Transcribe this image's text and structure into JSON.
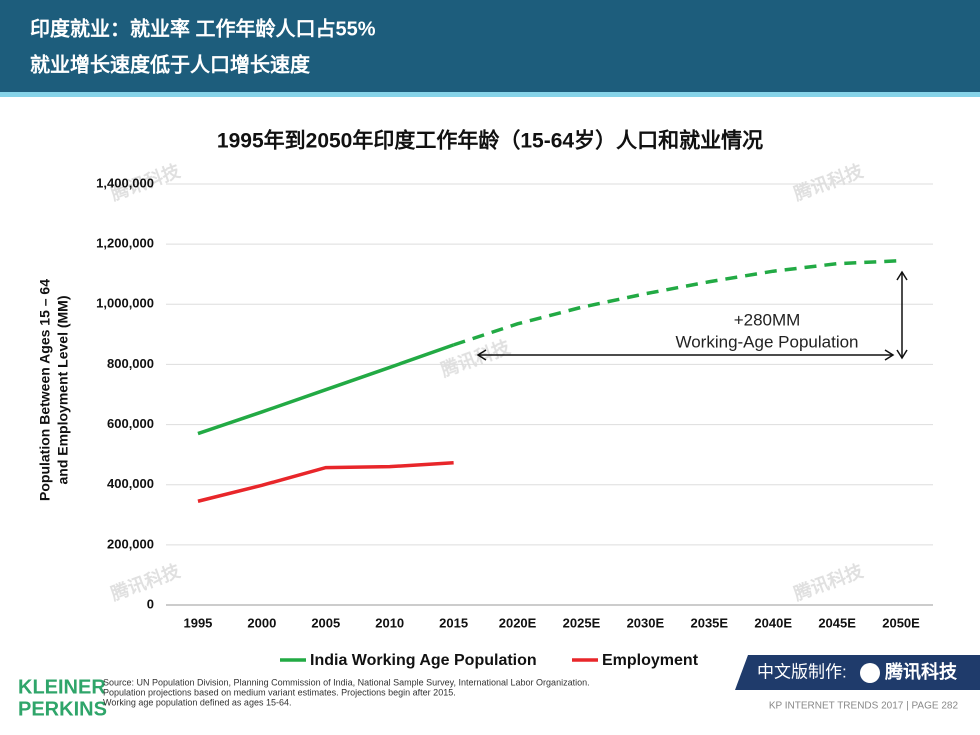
{
  "header": {
    "title_line1": "印度就业：就业率 工作年龄人口占55%",
    "title_line2": "就业增长速度低于人口增长速度"
  },
  "chart_data": {
    "type": "line",
    "title": "1995年到2050年印度工作年龄（15-64岁）人口和就业情况",
    "y_label": [
      "Population Between Ages 15 – 64",
      "and Employment Level (MM)"
    ],
    "categories": [
      "1995",
      "2000",
      "2005",
      "2010",
      "2015",
      "2020E",
      "2025E",
      "2030E",
      "2035E",
      "2040E",
      "2045E",
      "2050E"
    ],
    "series": [
      {
        "name": "India Working Age Population",
        "color": "#22aa44",
        "values": [
          570000,
          642000,
          716000,
          790000,
          865000,
          935000,
          990000,
          1035000,
          1075000,
          1110000,
          1135000,
          1145000
        ]
      },
      {
        "name": "Employment",
        "color": "#e8262a",
        "values": [
          345000,
          398000,
          457000,
          460000,
          473000,
          null,
          null,
          null,
          null,
          null,
          null,
          null
        ]
      }
    ],
    "ylim": [
      0,
      1400000
    ],
    "yticks": [
      0,
      {
        "value": 200000,
        "label": "200,000"
      },
      {
        "value": 400000,
        "label": "400,000"
      },
      {
        "value": 600000,
        "label": "600,000"
      },
      {
        "value": 800000,
        "label": "800,000"
      },
      {
        "value": 1000000,
        "label": "1,000,000"
      },
      {
        "value": 1200000,
        "label": "1,200,000"
      },
      {
        "value": 1400000,
        "label": "1,400,000"
      }
    ],
    "grid": true,
    "annotations": [
      "+280MM",
      "Working-Age Population"
    ]
  },
  "watermark": "腾讯科技",
  "footer": {
    "logo": [
      "KLEINER",
      "PERKINS"
    ],
    "source": [
      "Source: UN Population Division, Planning Commission of India, National Sample Survey, International Labor Organization.",
      "Population projections based on medium variant estimates. Projections begin after 2015.",
      "Working age population defined as ages 15-64."
    ],
    "credit": "中文版制作:",
    "credit_brand": "腾讯科技",
    "page": "KP INTERNET TRENDS 2017  |  PAGE 282"
  }
}
